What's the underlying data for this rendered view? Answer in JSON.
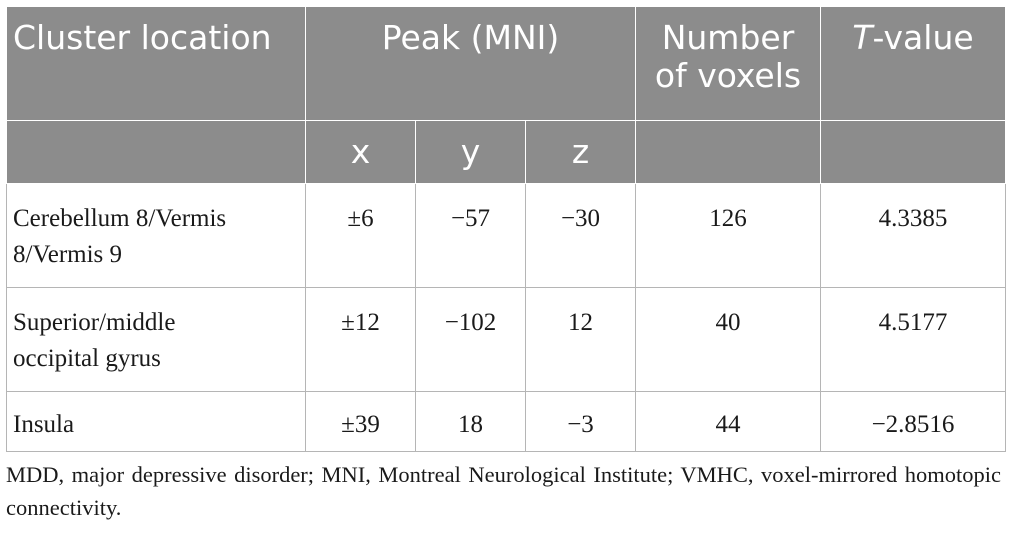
{
  "table": {
    "headers": {
      "cluster_location": "Cluster location",
      "peak": "Peak (MNI)",
      "number_of_voxels_line1": "Number",
      "number_of_voxels_line2": "of voxels",
      "t_value_italic": "T",
      "t_value_rest": "-value",
      "x": "x",
      "y": "y",
      "z": "z"
    },
    "rows": [
      {
        "location_line1": "Cerebellum 8/Vermis",
        "location_line2": "8/Vermis 9",
        "x": "±6",
        "y": "−57",
        "z": "−30",
        "voxels": "126",
        "t_value": "4.3385"
      },
      {
        "location_line1": "Superior/middle",
        "location_line2": "occipital gyrus",
        "x": "±12",
        "y": "−102",
        "z": "12",
        "voxels": "40",
        "t_value": "4.5177"
      },
      {
        "location_line1": "Insula",
        "location_line2": "",
        "x": "±39",
        "y": "18",
        "z": "−3",
        "voxels": "44",
        "t_value": "−2.8516"
      }
    ]
  },
  "footnote": "MDD, major depressive disorder; MNI, Montreal Neurological Institute; VMHC, voxel-mirrored homotopic connectivity.",
  "colors": {
    "header_bg": "#8c8c8c",
    "header_text": "#ffffff",
    "grid": "#b5b5b5",
    "body_text": "#1a1a1a"
  }
}
